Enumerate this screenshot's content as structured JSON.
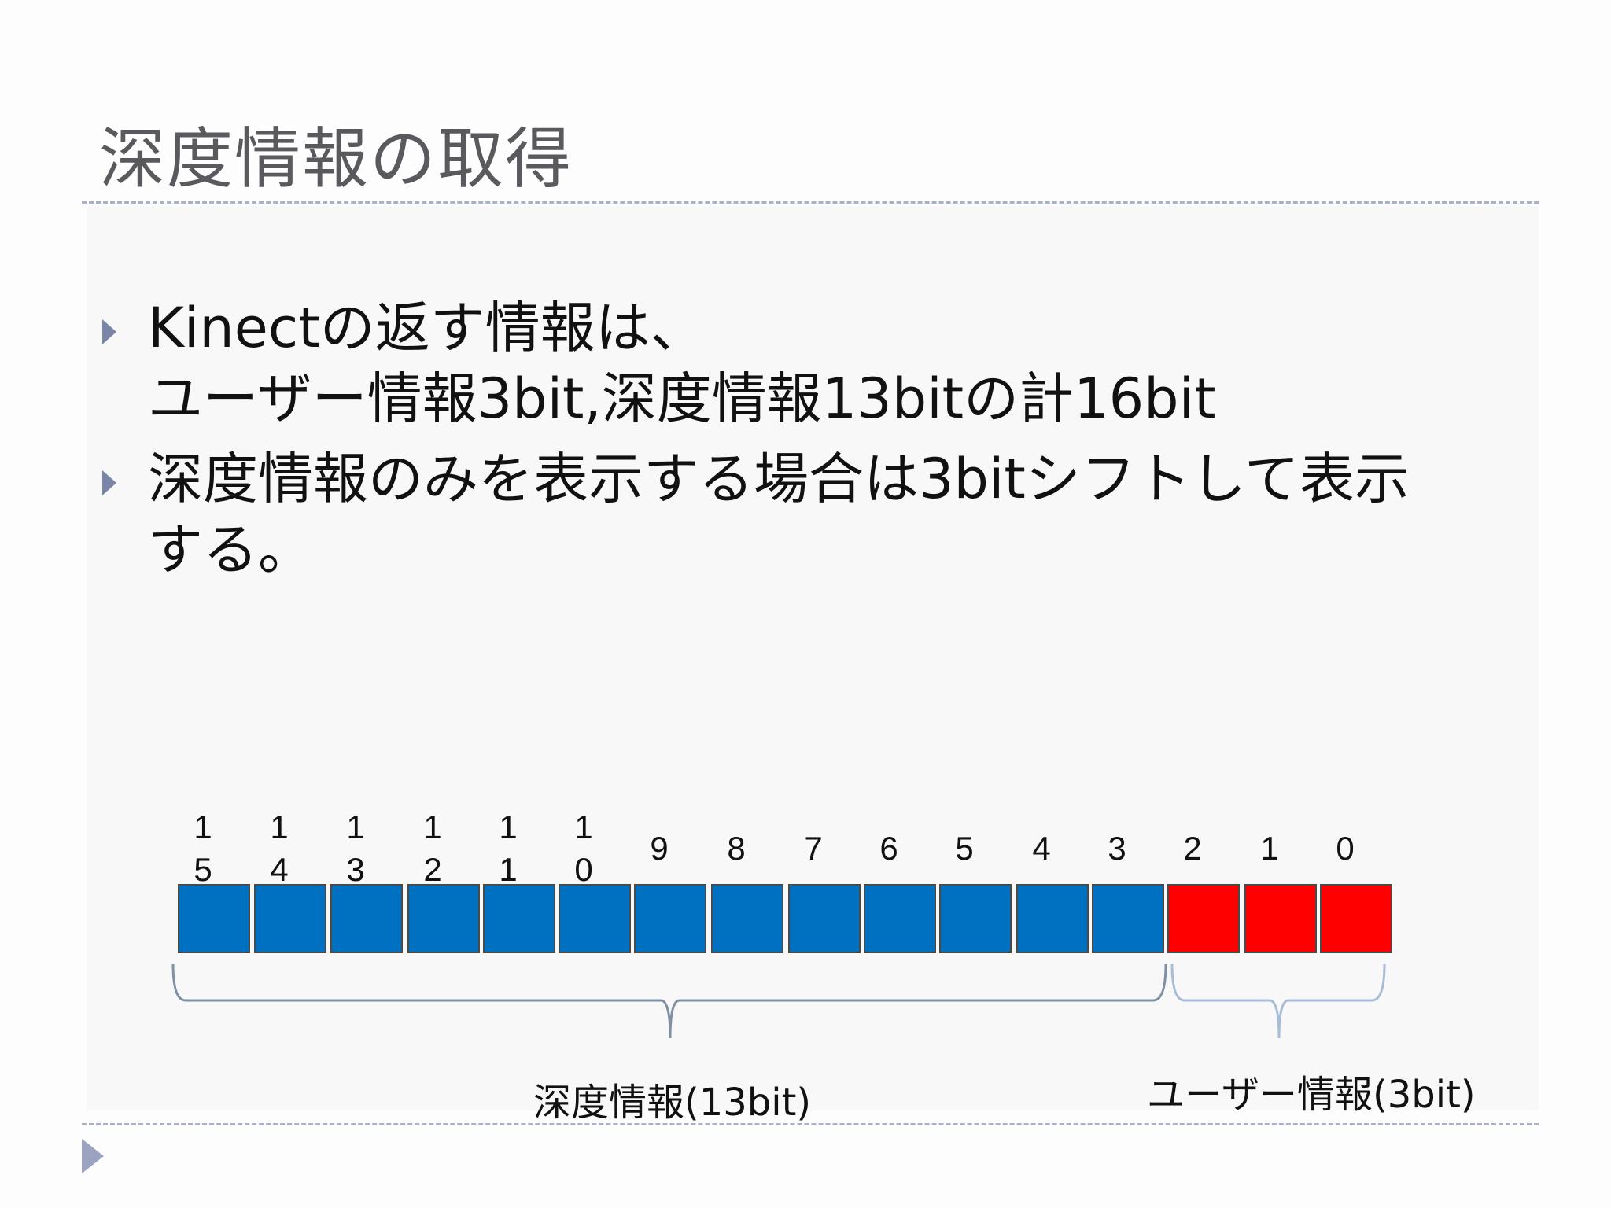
{
  "slide": {
    "title": "深度情報の取得",
    "bullets": [
      "Kinectの返す情報は、\nユーザー情報3bit,深度情報13bitの計16bit",
      "深度情報のみを表示する場合は3bitシフトして表示\nする。"
    ]
  },
  "diagram": {
    "bits": [
      {
        "label_line1": "1",
        "label_line2": "5",
        "group": "depth"
      },
      {
        "label_line1": "1",
        "label_line2": "4",
        "group": "depth"
      },
      {
        "label_line1": "1",
        "label_line2": "3",
        "group": "depth"
      },
      {
        "label_line1": "1",
        "label_line2": "2",
        "group": "depth"
      },
      {
        "label_line1": "1",
        "label_line2": "1",
        "group": "depth"
      },
      {
        "label_line1": "1",
        "label_line2": "0",
        "group": "depth"
      },
      {
        "label_line1": "9",
        "label_line2": "",
        "group": "depth"
      },
      {
        "label_line1": "8",
        "label_line2": "",
        "group": "depth"
      },
      {
        "label_line1": "7",
        "label_line2": "",
        "group": "depth"
      },
      {
        "label_line1": "6",
        "label_line2": "",
        "group": "depth"
      },
      {
        "label_line1": "5",
        "label_line2": "",
        "group": "depth"
      },
      {
        "label_line1": "4",
        "label_line2": "",
        "group": "depth"
      },
      {
        "label_line1": "3",
        "label_line2": "",
        "group": "depth"
      },
      {
        "label_line1": "2",
        "label_line2": "",
        "group": "user"
      },
      {
        "label_line1": "1",
        "label_line2": "",
        "group": "user"
      },
      {
        "label_line1": "0",
        "label_line2": "",
        "group": "user"
      }
    ],
    "depth_label": "深度情報(13bit)",
    "user_label": "ユーザー情報(3bit)",
    "colors": {
      "depth": "#0070c0",
      "user": "#ff0000",
      "depth_brace": "#7f8fa6",
      "user_brace": "#a9bcd6"
    }
  }
}
